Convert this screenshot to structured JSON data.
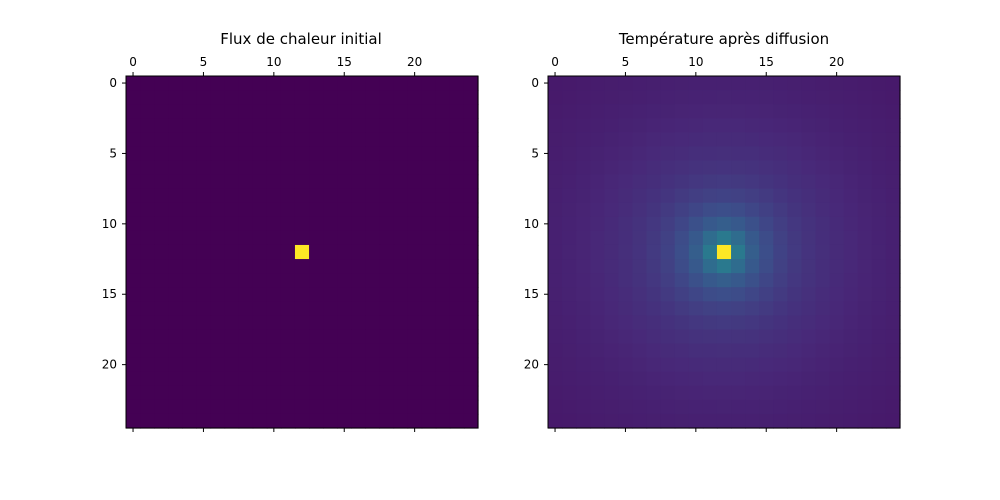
{
  "chart_data": [
    {
      "type": "heatmap",
      "title": "Flux de chaleur initial",
      "grid_size": 25,
      "colormap": "viridis",
      "x_ticks": [
        0,
        5,
        10,
        15,
        20
      ],
      "y_ticks": [
        0,
        5,
        10,
        15,
        20
      ],
      "x_axis_position": "top",
      "values_description": "all zero except a single hot cell",
      "hot_cell": {
        "row": 12,
        "col": 12,
        "value": 1
      },
      "value_range": [
        0,
        1
      ],
      "background_value": 0
    },
    {
      "type": "heatmap",
      "title": "Température après diffusion",
      "grid_size": 25,
      "colormap": "viridis",
      "x_ticks": [
        0,
        5,
        10,
        15,
        20
      ],
      "y_ticks": [
        0,
        5,
        10,
        15,
        20
      ],
      "x_axis_position": "top",
      "center": {
        "row": 12,
        "col": 12
      },
      "value_range": [
        0,
        1
      ],
      "field": "smooth diffusion field peaking at the centre cell and decaying toward the edges"
    }
  ],
  "colors": {
    "viridis_min": "#440154",
    "viridis_max": "#fde725"
  }
}
